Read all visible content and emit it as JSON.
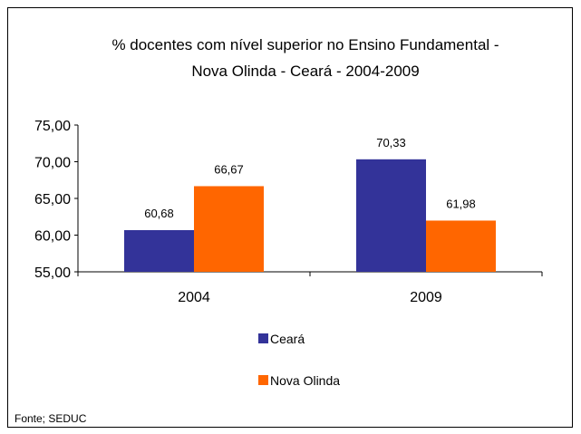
{
  "chart_data": {
    "type": "bar",
    "title_lines": [
      "% docentes com nível  superior no Ensino Fundamental  -",
      "Nova Olinda  -  Ceará - 2004-2009"
    ],
    "categories": [
      "2004",
      "2009"
    ],
    "series": [
      {
        "name": "Ceará",
        "values": [
          60.68,
          70.33
        ],
        "labels": [
          "60,68",
          "70,33"
        ],
        "color": "#333399"
      },
      {
        "name": "Nova Olinda",
        "values": [
          66.67,
          61.98
        ],
        "labels": [
          "66,67",
          "61,98"
        ],
        "color": "#ff6600"
      }
    ],
    "ylim": [
      55,
      75
    ],
    "yticks": [
      55,
      60,
      65,
      70,
      75
    ],
    "ytick_labels": [
      "55,00",
      "60,00",
      "65,00",
      "70,00",
      "75,00"
    ],
    "grid": false,
    "legend_position": "bottom",
    "source": "Fonte; SEDUC"
  }
}
